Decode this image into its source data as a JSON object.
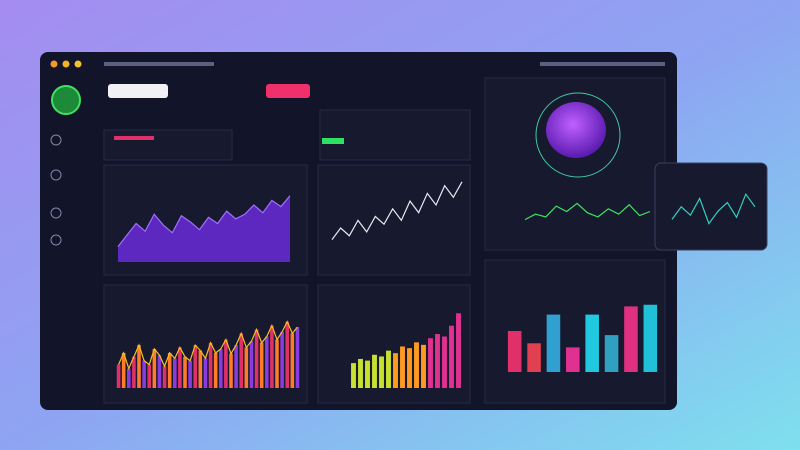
{
  "area_chart": {
    "values": [
      20,
      35,
      50,
      40,
      62,
      48,
      38,
      60,
      52,
      42,
      58,
      50,
      66,
      56,
      62,
      74,
      64,
      80,
      72,
      86
    ],
    "ylim": [
      0,
      100
    ],
    "color": "#6a2bd9"
  },
  "line_chart": {
    "values": [
      20,
      35,
      25,
      45,
      30,
      50,
      40,
      60,
      45,
      70,
      55,
      80,
      65,
      90,
      75,
      95
    ],
    "ylim": [
      0,
      100
    ],
    "color": "#e8e8f0"
  },
  "bar_chart": {
    "values": [
      30,
      45,
      25,
      40,
      55,
      35,
      30,
      50,
      42,
      28,
      45,
      38,
      52,
      40,
      35,
      55,
      48,
      38,
      58,
      45,
      50,
      62,
      44,
      55,
      70,
      52,
      60,
      75,
      58,
      66,
      80,
      62,
      72,
      85,
      70,
      78
    ],
    "ylim": [
      0,
      100
    ],
    "colors": [
      "#e0306a",
      "#ff7a2a",
      "#8a3be0"
    ],
    "trend_color": "#f5c020"
  },
  "growth_bars": {
    "values": [
      30,
      35,
      33,
      40,
      38,
      45,
      42,
      50,
      48,
      55,
      52,
      60,
      65,
      62,
      75,
      90
    ],
    "ylim": [
      0,
      100
    ],
    "colors": [
      "#c8e030",
      "#ff9a20",
      "#e03090"
    ]
  },
  "side_bars": {
    "values": [
      50,
      35,
      70,
      30,
      70,
      45,
      80,
      82
    ],
    "ylim": [
      0,
      100
    ],
    "colors": [
      "#e0306a",
      "#e04050",
      "#30a0d0",
      "#e03090",
      "#20c8e0",
      "#30a0c0",
      "#e03080",
      "#20c0d8"
    ]
  },
  "blob_line": {
    "values": [
      20,
      40,
      30,
      70,
      50,
      80,
      45,
      30,
      60,
      40,
      75,
      35,
      50
    ],
    "ylim": [
      0,
      100
    ],
    "color": "#40e060"
  },
  "card_line": {
    "values": [
      30,
      60,
      40,
      80,
      20,
      50,
      70,
      35,
      90,
      60
    ],
    "ylim": [
      0,
      100
    ],
    "color": "#30d0c0"
  }
}
